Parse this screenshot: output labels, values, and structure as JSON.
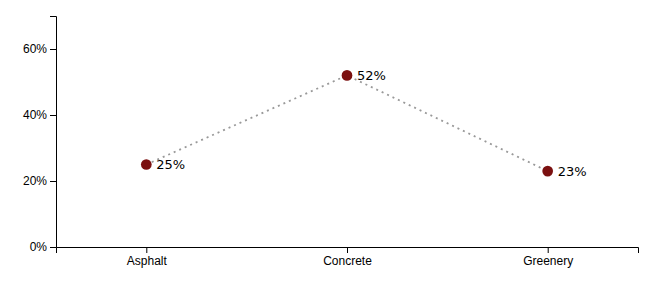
{
  "chart_data": {
    "type": "line",
    "categories": [
      "Asphalt",
      "Concrete",
      "Greenery"
    ],
    "values": [
      0.25,
      0.52,
      0.23
    ],
    "value_labels": [
      "25%",
      "52%",
      "23%"
    ],
    "data_labels": true,
    "color": "#7B1010",
    "marker": "circle",
    "line_style": "dotted",
    "ylim": [
      0,
      0.7
    ],
    "yticks": [
      {
        "value": 0.0,
        "label": "0%"
      },
      {
        "value": 0.2,
        "label": "20%"
      },
      {
        "value": 0.4,
        "label": "40%"
      },
      {
        "value": 0.6,
        "label": "60%"
      }
    ],
    "grid": false
  }
}
